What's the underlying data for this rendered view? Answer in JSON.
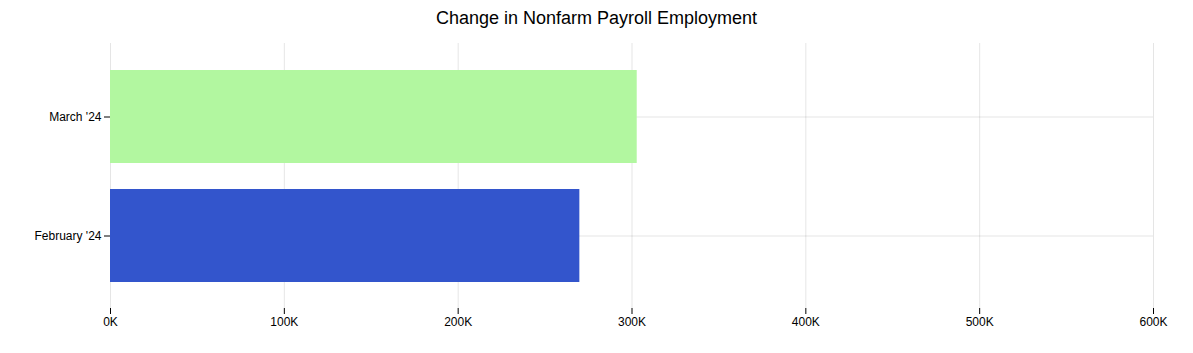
{
  "chart_data": {
    "type": "bar",
    "orientation": "horizontal",
    "title": "Change in Nonfarm Payroll Employment",
    "categories": [
      "March '24",
      "February '24"
    ],
    "values": [
      303000,
      270000
    ],
    "colors": [
      "#b2f7a0",
      "#3355cc"
    ],
    "xlim": [
      0,
      600000
    ],
    "xticks": [
      {
        "value": 0,
        "label": "0K"
      },
      {
        "value": 100000,
        "label": "100K"
      },
      {
        "value": 200000,
        "label": "200K"
      },
      {
        "value": 300000,
        "label": "300K"
      },
      {
        "value": 400000,
        "label": "400K"
      },
      {
        "value": 500000,
        "label": "500K"
      },
      {
        "value": 600000,
        "label": "600K"
      }
    ],
    "grid": true
  }
}
